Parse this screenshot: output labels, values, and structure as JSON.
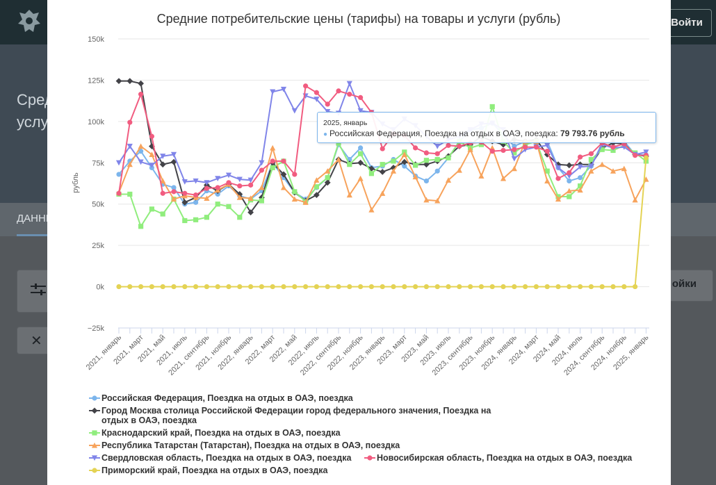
{
  "background": {
    "login_label": "Войти",
    "hero_title_line1": "Сред",
    "hero_title_line2": "услу",
    "tab_label": "ДАННЫ",
    "settings_label": "ойки",
    "close_glyph": "✕"
  },
  "chart_data": {
    "type": "line",
    "title": "Средние потребительские цены (тарифы) на товары и услуги (рубль)",
    "ylabel": "рубль",
    "xlabel": "",
    "ylim": [
      -25000,
      150000
    ],
    "yticks": [
      -25000,
      0,
      25000,
      50000,
      75000,
      100000,
      125000,
      150000
    ],
    "ytick_labels": [
      "−25k",
      "0k",
      "25k",
      "50k",
      "75k",
      "100k",
      "125k",
      "150k"
    ],
    "grid": true,
    "legend_position": "bottom",
    "x_tick_labels": [
      "2021, январь",
      "2021, март",
      "2021, май",
      "2021, июль",
      "2021, сентябрь",
      "2021, ноябрь",
      "2022, январь",
      "2022, март",
      "2022, май",
      "2022, июль",
      "2022, сентябрь",
      "2022, ноябрь",
      "2023, январь",
      "2023, март",
      "2023, май",
      "2023, июль",
      "2023, сентябрь",
      "2023, ноябрь",
      "2024, январь",
      "2024, март",
      "2024, май",
      "2024, июль",
      "2024, сентябрь",
      "2024, ноябрь",
      "2025, январь"
    ],
    "x_count": 49,
    "series": [
      {
        "name": "Российская Федерация, Поездка на отдых в ОАЭ, поездка",
        "color": "#7cb5ec",
        "marker": "circle",
        "values": [
          68000,
          76000,
          82000,
          72000,
          62000,
          60000,
          50000,
          51000,
          58000,
          56000,
          61000,
          55000,
          53000,
          58000,
          75000,
          66000,
          57000,
          53000,
          60000,
          66000,
          86000,
          77000,
          84000,
          72000,
          73000,
          77000,
          73000,
          67000,
          64000,
          70000,
          78000,
          88000,
          95000,
          96000,
          99000,
          92000,
          85000,
          88000,
          87000,
          88000,
          72000,
          64000,
          66000,
          73000,
          87000,
          88000,
          88000,
          80000,
          79794
        ]
      },
      {
        "name": "Город Москва столица Российской Федерации город федерального значения, Поездка на отдых в ОАЭ, поездка",
        "color": "#434348",
        "marker": "diamond",
        "values": [
          124500,
          124500,
          123000,
          85000,
          74000,
          75500,
          51000,
          54000,
          61500,
          58000,
          62000,
          56000,
          45000,
          54000,
          75000,
          68000,
          57000,
          52000,
          55500,
          63000,
          77000,
          74500,
          75000,
          71500,
          69500,
          72000,
          75500,
          74000,
          74000,
          76000,
          79000,
          85000,
          86000,
          91000,
          88000,
          86000,
          89000,
          88000,
          89000,
          80000,
          74000,
          73500,
          74000,
          74000,
          84000,
          87000,
          86500,
          80000,
          79000
        ]
      },
      {
        "name": "Краснодарский край, Поездка на отдых в ОАЭ, поездка",
        "color": "#90ed7d",
        "marker": "square",
        "values": [
          56000,
          56000,
          36500,
          47000,
          44000,
          53000,
          40000,
          40500,
          42000,
          50000,
          48500,
          42000,
          52500,
          52000,
          72000,
          76000,
          57500,
          51500,
          60500,
          66000,
          87000,
          74000,
          80500,
          68500,
          74000,
          76000,
          81500,
          73500,
          76500,
          77000,
          78000,
          88000,
          84000,
          86000,
          109000,
          88000,
          81000,
          86000,
          88000,
          70000,
          54500,
          54500,
          61000,
          77000,
          83000,
          82500,
          85500,
          81000,
          76000
        ]
      },
      {
        "name": "Республика Татарстан (Татарстан), Поездка на отдых в ОАЭ, поездка",
        "color": "#f7a35c",
        "marker": "triangle",
        "values": [
          57000,
          74000,
          85000,
          80000,
          64000,
          53000,
          55000,
          54000,
          53500,
          58500,
          62000,
          54000,
          53500,
          60000,
          84000,
          60000,
          53000,
          51000,
          64500,
          70000,
          77000,
          55500,
          65500,
          46500,
          56500,
          70000,
          80000,
          66500,
          52500,
          52000,
          64500,
          70500,
          83000,
          67000,
          84000,
          65500,
          71500,
          88000,
          88000,
          64000,
          53000,
          58000,
          58500,
          70000,
          74000,
          70000,
          71500,
          52500,
          65000
        ]
      },
      {
        "name": "Свердловская область, Поездка на отдых в ОАЭ, поездка",
        "color": "#8085e9",
        "marker": "triangle-down",
        "values": [
          75000,
          85000,
          75500,
          73500,
          79000,
          80000,
          63500,
          64000,
          63000,
          65500,
          67500,
          65000,
          64500,
          75000,
          118000,
          119500,
          106500,
          115500,
          113500,
          106000,
          105000,
          123000,
          106500,
          105500,
          98500,
          95000,
          101500,
          97500,
          91000,
          85000,
          89000,
          91000,
          95000,
          98500,
          99000,
          95000,
          77500,
          83000,
          84500,
          85500,
          72000,
          67000,
          72500,
          73000,
          86000,
          84000,
          84500,
          80000,
          81500
        ]
      },
      {
        "name": "Новосибирская область, Поездка на отдых в ОАЭ, поездка",
        "color": "#f15c80",
        "marker": "circle",
        "values": [
          56500,
          99500,
          116500,
          91000,
          56500,
          57500,
          56500,
          55500,
          59500,
          60000,
          63000,
          61000,
          61500,
          70500,
          76000,
          76000,
          68000,
          121500,
          117500,
          110500,
          118500,
          116500,
          114500,
          105500,
          83500,
          92500,
          91500,
          84000,
          81000,
          80500,
          85500,
          85000,
          87000,
          87500,
          82000,
          82500,
          83000,
          84500,
          84500,
          82000,
          65500,
          69000,
          78500,
          80500,
          87000,
          84500,
          86500,
          79500,
          79500
        ]
      },
      {
        "name": "Приморский край, Поездка на отдых в ОАЭ, поездка",
        "color": "#e4d354",
        "marker": "circle",
        "values": [
          0,
          0,
          0,
          0,
          0,
          0,
          0,
          0,
          0,
          0,
          0,
          0,
          0,
          0,
          0,
          0,
          0,
          0,
          0,
          0,
          0,
          0,
          0,
          0,
          0,
          0,
          0,
          0,
          0,
          0,
          0,
          0,
          0,
          0,
          0,
          0,
          0,
          0,
          0,
          0,
          0,
          0,
          0,
          0,
          0,
          0,
          0,
          0,
          78000
        ]
      }
    ],
    "tooltip": {
      "date": "2025, январь",
      "series_label": "Российская Федерация, Поездка на отдых в ОАЭ, поездка:",
      "value_label": "79 793.76 рубль"
    }
  }
}
